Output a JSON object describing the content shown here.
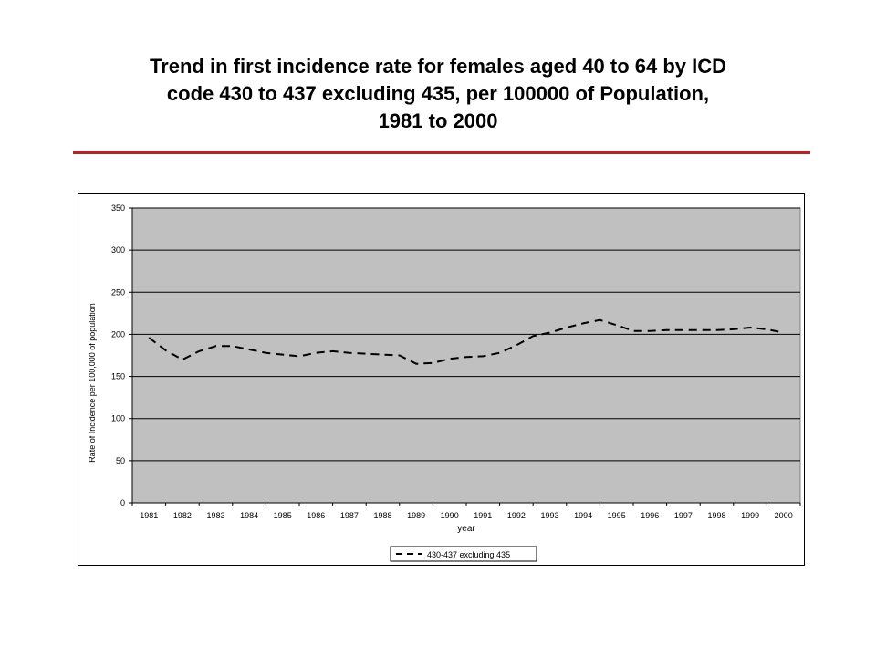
{
  "title": {
    "line1": "Trend in first incidence rate for females aged 40 to 64 by ICD",
    "line2": "code 430 to 437 excluding 435, per 100000 of Population,",
    "line3": "1981 to 2000"
  },
  "colors": {
    "rule": "#b0262c",
    "plot_area": "#c0c0c0",
    "series_line": "#000000"
  },
  "chart_data": {
    "type": "line",
    "title": "",
    "xlabel": "year",
    "ylabel": "Rate of Incidence per 100,000 of population",
    "ylim": [
      0,
      350
    ],
    "yticks": [
      0,
      50,
      100,
      150,
      200,
      250,
      300,
      350
    ],
    "categories": [
      "1981",
      "1982",
      "1983",
      "1984",
      "1985",
      "1986",
      "1987",
      "1988",
      "1989",
      "1990",
      "1991",
      "1992",
      "1993",
      "1994",
      "1995",
      "1996",
      "1997",
      "1998",
      "1999",
      "2000"
    ],
    "grid": true,
    "legend_position": "bottom",
    "series": [
      {
        "name": "430-437 excluding 435",
        "line_style": "dashed",
        "x": [
          1981,
          1981.5,
          1982,
          1982.5,
          1983,
          1983.5,
          1984,
          1984.5,
          1985,
          1985.5,
          1986,
          1986.5,
          1987,
          1987.5,
          1988,
          1988.5,
          1989,
          1989.5,
          1990,
          1990.5,
          1991,
          1991.5,
          1992,
          1992.5,
          1993,
          1993.5,
          1994,
          1994.5,
          1995,
          1995.5,
          1996,
          1996.5,
          1997,
          1997.5,
          1998,
          1998.5,
          1999,
          1999.5,
          2000
        ],
        "values": [
          196,
          181,
          170,
          180,
          186,
          186,
          182,
          178,
          176,
          174,
          178,
          180,
          178,
          177,
          176,
          175,
          165,
          166,
          171,
          173,
          174,
          178,
          187,
          198,
          202,
          208,
          213,
          217,
          211,
          204,
          204,
          205,
          205,
          205,
          205,
          206,
          208,
          206,
          202
        ]
      }
    ]
  }
}
